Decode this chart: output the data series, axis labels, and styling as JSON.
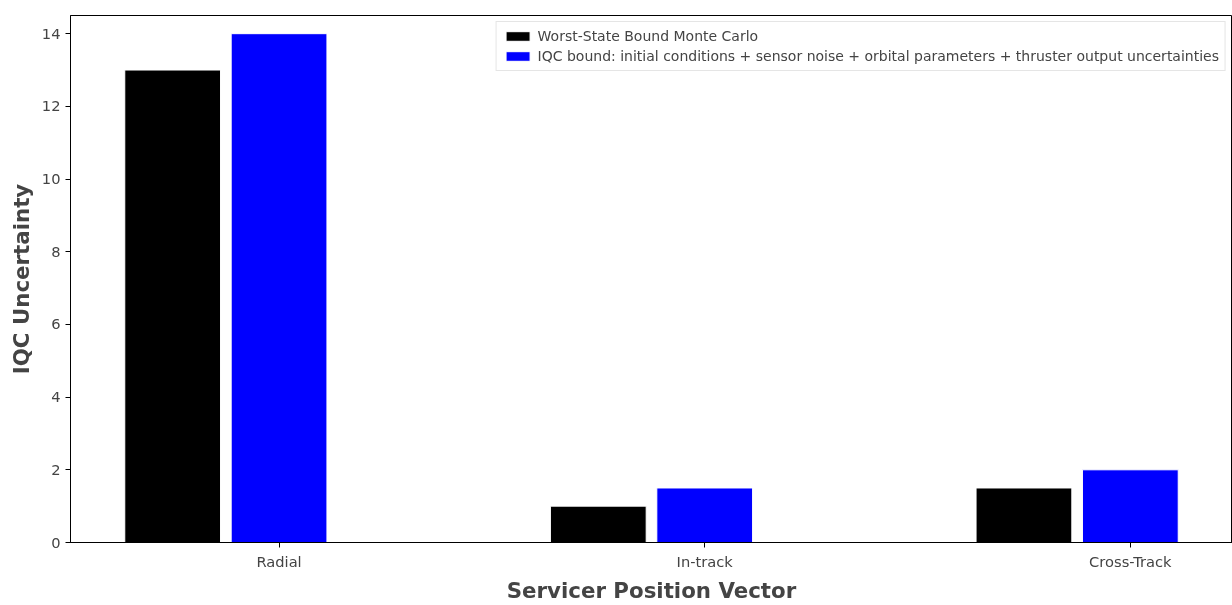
{
  "chart_data": {
    "type": "bar",
    "xlabel": "Servicer Position Vector",
    "ylabel": "IQC Uncertainty",
    "categories": [
      "Radial",
      "In-track",
      "Cross-Track"
    ],
    "series": [
      {
        "name": "Worst-State Bound Monte Carlo",
        "color": "#000000",
        "values": [
          13,
          1,
          1.5
        ]
      },
      {
        "name": "IQC bound: initial conditions + sensor noise + orbital parameters + thruster output uncertainties",
        "color": "#0000ff",
        "values": [
          14,
          1.5,
          2
        ]
      }
    ],
    "ylim": [
      0,
      14.5
    ],
    "yticks": [
      0,
      2,
      4,
      6,
      8,
      10,
      12,
      14
    ],
    "grid": false,
    "legend": "top right"
  }
}
